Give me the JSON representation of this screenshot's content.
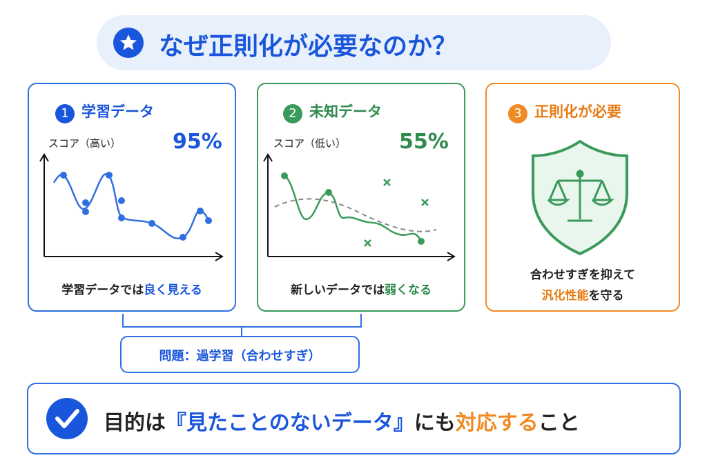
{
  "title": "なぜ正則化が必要なのか？",
  "panels": [
    {
      "number": "1",
      "heading": "学習データ",
      "score_label": "スコア（高い）",
      "score": "95%",
      "caption": [
        "学習データでは",
        "良く見える"
      ]
    },
    {
      "number": "2",
      "heading": "未知データ",
      "score_label": "スコア（低い）",
      "score": "55%",
      "caption": [
        "新しいデータでは",
        "弱くなる"
      ]
    },
    {
      "number": "3",
      "heading": "正則化が必要",
      "caption": [
        "合わせすぎを抑えて",
        "汎化性能",
        "を守る"
      ]
    }
  ],
  "problem": "問題：過学習（合わせすぎ）",
  "goal": [
    "目的は",
    "『見たことのないデータ』",
    "にも",
    "対応する",
    "こと"
  ]
}
